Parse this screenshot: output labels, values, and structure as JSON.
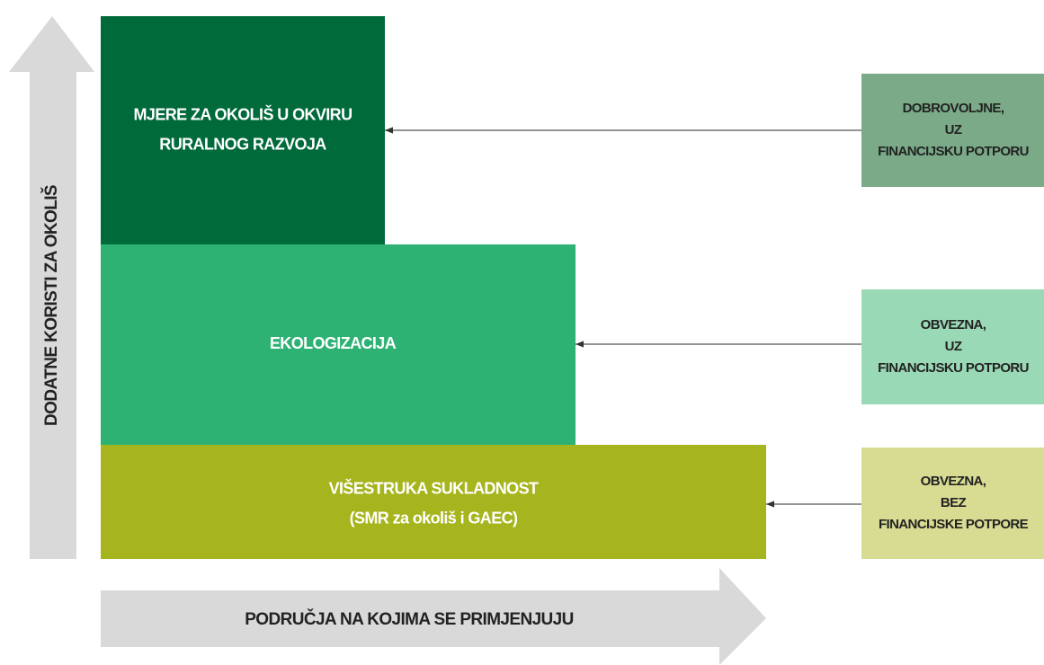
{
  "y_axis_label": "DODATNE KORISTI ZA OKOLIŠ",
  "x_axis_label": "PODRUČJA NA KOJIMA SE PRIMJENJUJU",
  "blocks": [
    {
      "lines": [
        "MJERE ZA OKOLIŠ U OKVIRU",
        "RURALNOG RAZVOJA"
      ]
    },
    {
      "lines": [
        "EKOLOGIZACIJA"
      ]
    },
    {
      "lines": [
        "VIŠESTRUKA SUKLADNOST",
        "(SMR za okoliš i GAEC)"
      ]
    }
  ],
  "conditions": [
    {
      "lines": [
        "DOBROVOLJNE,",
        "UZ",
        "FINANCIJSKU POTPORU"
      ]
    },
    {
      "lines": [
        "OBVEZNA,",
        "UZ",
        "FINANCIJSKU POTPORU"
      ]
    },
    {
      "lines": [
        "OBVEZNA,",
        "BEZ",
        "FINANCIJSKE POTPORE"
      ]
    }
  ]
}
